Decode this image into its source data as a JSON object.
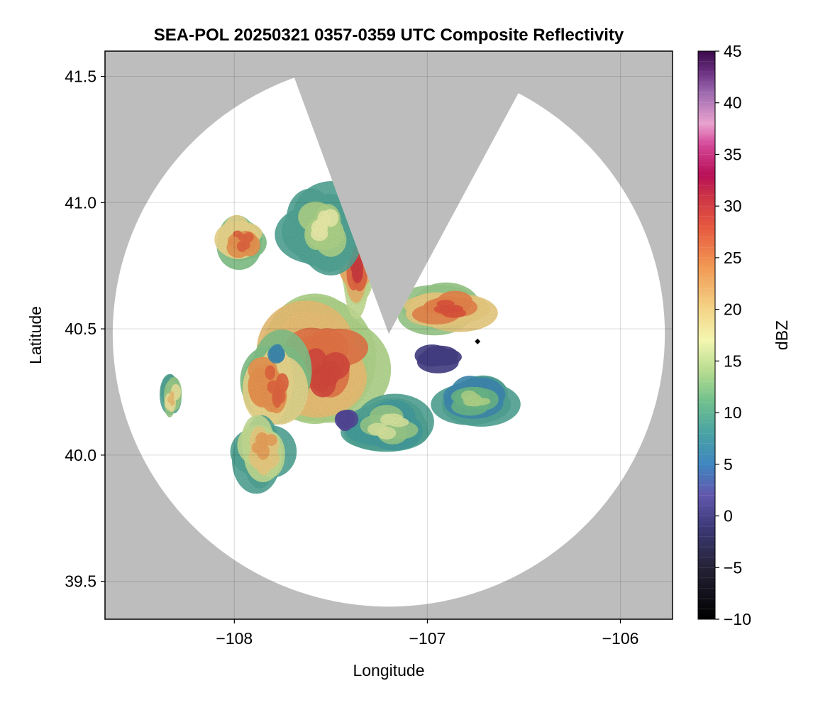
{
  "chart_data": {
    "type": "heatmap",
    "title": "SEA-POL 20250321 0357-0359 UTC Composite Reflectivity",
    "xlabel": "Longitude",
    "ylabel": "Latitude",
    "xlim": [
      -108.67,
      -105.73
    ],
    "ylim": [
      39.35,
      41.6
    ],
    "x_ticks": [
      {
        "value": -108,
        "label": "−108"
      },
      {
        "value": -107,
        "label": "−107"
      },
      {
        "value": -106,
        "label": "−106"
      }
    ],
    "y_ticks": [
      {
        "value": 39.5,
        "label": "39.5"
      },
      {
        "value": 40.0,
        "label": "40.0"
      },
      {
        "value": 40.5,
        "label": "40.5"
      },
      {
        "value": 41.0,
        "label": "41.0"
      },
      {
        "value": 41.5,
        "label": "41.5"
      }
    ],
    "grid": true,
    "background_color": "#bdbdbd",
    "coverage_color": "#ffffff",
    "radar": {
      "center_lon": -107.2,
      "center_lat": 40.48,
      "range_deg_lon": 1.43,
      "range_deg_lat": 1.08,
      "blocked_sector_deg": [
        62,
        110
      ]
    },
    "marker": {
      "lon": -106.74,
      "lat": 40.45,
      "color": "#000000"
    },
    "colorbar": {
      "label": "dBZ",
      "min": -10,
      "max": 45,
      "ticks": [
        {
          "value": 45,
          "label": "45"
        },
        {
          "value": 40,
          "label": "40"
        },
        {
          "value": 35,
          "label": "35"
        },
        {
          "value": 30,
          "label": "30"
        },
        {
          "value": 25,
          "label": "25"
        },
        {
          "value": 20,
          "label": "20"
        },
        {
          "value": 15,
          "label": "15"
        },
        {
          "value": 10,
          "label": "10"
        },
        {
          "value": 5,
          "label": "5"
        },
        {
          "value": 0,
          "label": "0"
        },
        {
          "value": -5,
          "label": "−5"
        },
        {
          "value": -10,
          "label": "−10"
        }
      ],
      "stops": [
        {
          "value": -10,
          "color": "#000000"
        },
        {
          "value": -5,
          "color": "#252236"
        },
        {
          "value": -1,
          "color": "#3d3a7a"
        },
        {
          "value": 2,
          "color": "#6257ad"
        },
        {
          "value": 5,
          "color": "#3f86c0"
        },
        {
          "value": 8,
          "color": "#49a3a3"
        },
        {
          "value": 11,
          "color": "#6fbf8e"
        },
        {
          "value": 14,
          "color": "#b6dc8f"
        },
        {
          "value": 17,
          "color": "#f4f6b0"
        },
        {
          "value": 20,
          "color": "#f3d486"
        },
        {
          "value": 24,
          "color": "#f29a54"
        },
        {
          "value": 28,
          "color": "#e6583f"
        },
        {
          "value": 31,
          "color": "#cb3346"
        },
        {
          "value": 33,
          "color": "#b80f57"
        },
        {
          "value": 36,
          "color": "#d54a9a"
        },
        {
          "value": 38,
          "color": "#e9a2cf"
        },
        {
          "value": 41,
          "color": "#9c69ae"
        },
        {
          "value": 43,
          "color": "#6a2f80"
        },
        {
          "value": 45,
          "color": "#3a0a4a"
        }
      ]
    },
    "echo_regions": [
      {
        "name": "main-storm",
        "lon": -107.55,
        "lat": 40.35,
        "rlon": 0.28,
        "rlat": 0.22,
        "dbz": 26
      },
      {
        "name": "storm-west",
        "lon": -107.8,
        "lat": 40.28,
        "rlon": 0.16,
        "rlat": 0.16,
        "dbz": 24
      },
      {
        "name": "storm-north",
        "lon": -107.35,
        "lat": 40.78,
        "rlon": 0.1,
        "rlat": 0.18,
        "dbz": 27
      },
      {
        "name": "storm-ne-band",
        "lon": -106.9,
        "lat": 40.58,
        "rlon": 0.22,
        "rlat": 0.08,
        "dbz": 25
      },
      {
        "name": "storm-nw",
        "lon": -107.95,
        "lat": 40.85,
        "rlon": 0.12,
        "rlat": 0.08,
        "dbz": 24
      },
      {
        "name": "storm-southwest",
        "lon": -107.85,
        "lat": 40.02,
        "rlon": 0.12,
        "rlat": 0.12,
        "dbz": 20
      },
      {
        "name": "light-north-plume",
        "lon": -107.55,
        "lat": 40.9,
        "rlon": 0.18,
        "rlat": 0.14,
        "dbz": 14
      },
      {
        "name": "light-east",
        "lon": -106.75,
        "lat": 40.22,
        "rlon": 0.18,
        "rlat": 0.08,
        "dbz": 11
      },
      {
        "name": "light-south",
        "lon": -107.2,
        "lat": 40.12,
        "rlon": 0.2,
        "rlat": 0.1,
        "dbz": 13
      },
      {
        "name": "light-sw-patch",
        "lon": -108.32,
        "lat": 40.23,
        "rlon": 0.05,
        "rlat": 0.07,
        "dbz": 18
      },
      {
        "name": "weak-echo-east",
        "lon": -106.95,
        "lat": 40.38,
        "rlon": 0.12,
        "rlat": 0.05,
        "dbz": 0
      },
      {
        "name": "weak-echo-south",
        "lon": -107.42,
        "lat": 40.14,
        "rlon": 0.06,
        "rlat": 0.04,
        "dbz": 1
      },
      {
        "name": "weak-echo-west",
        "lon": -107.77,
        "lat": 40.4,
        "rlon": 0.05,
        "rlat": 0.04,
        "dbz": 6
      }
    ]
  }
}
